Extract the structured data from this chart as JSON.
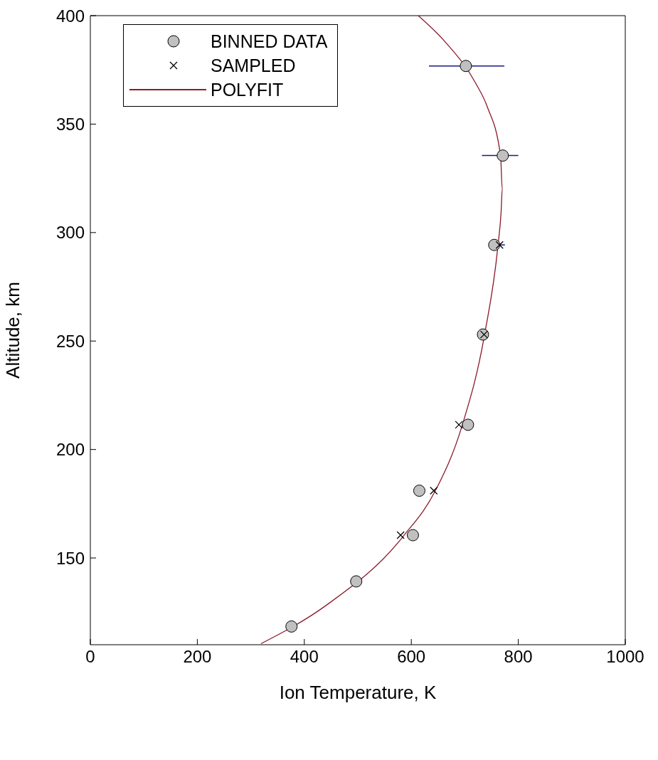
{
  "chart_data": {
    "type": "scatter",
    "xlabel": "Ion Temperature, K",
    "ylabel": "Altitude, km",
    "xlim": [
      0,
      1000
    ],
    "xticks": [
      0,
      200,
      400,
      600,
      800,
      1000
    ],
    "ylim": [
      110,
      400
    ],
    "yticks": [
      150,
      200,
      250,
      300,
      350,
      400
    ],
    "legend": "top left",
    "series": [
      {
        "name": "BINNED DATA",
        "marker": "circle",
        "color": "#c0c0c0",
        "x": [
          702,
          771,
          755,
          734,
          706,
          615,
          603,
          497,
          376
        ],
        "values": [
          376.8,
          335.5,
          294.3,
          253,
          211.4,
          181,
          160.5,
          139.2,
          118.4
        ],
        "xerrors": [
          [
            633,
            774
          ],
          [
            732,
            800
          ],
          [
            745,
            775
          ],
          null,
          null,
          null,
          null,
          null,
          null
        ]
      },
      {
        "name": "SAMPLED",
        "marker": "cross",
        "color": "#000000",
        "x": [
          765,
          736,
          689,
          642,
          580
        ],
        "values": [
          294.3,
          253,
          211.4,
          181,
          160.5
        ]
      },
      {
        "name": "POLYFIT",
        "type": "line",
        "marker": "none",
        "color": "#8b1a2b",
        "x": [
          319,
          440,
          585,
          645,
          695,
          737,
          762,
          768,
          770,
          767,
          742,
          720,
          663,
          613
        ],
        "values": [
          110.5,
          128,
          160,
          181,
          211,
          253,
          294,
          310,
          320,
          335,
          358,
          369,
          388,
          400
        ]
      }
    ]
  }
}
